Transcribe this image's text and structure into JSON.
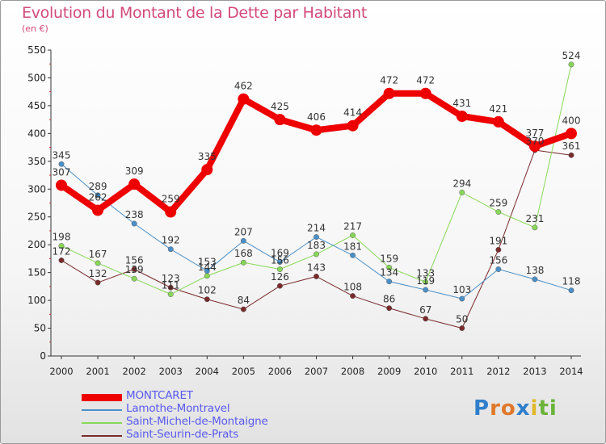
{
  "title": "Evolution du Montant de la Dette par Habitant",
  "unit_label": "(en €)",
  "logo_text": "Proxiti",
  "chart_data": {
    "type": "line",
    "x": [
      "2000",
      "2001",
      "2002",
      "2003",
      "2004",
      "2005",
      "2006",
      "2007",
      "2008",
      "2009",
      "2010",
      "2011",
      "2012",
      "2013",
      "2014"
    ],
    "ylim": [
      0,
      550
    ],
    "yticks": [
      0,
      50,
      100,
      150,
      200,
      250,
      300,
      350,
      400,
      450,
      500,
      550
    ],
    "grid": false,
    "legend_placement": "bottom-left",
    "series": [
      {
        "name": "MONTCARET",
        "color": "#ee0000",
        "width": 8,
        "values": [
          307,
          262,
          309,
          259,
          335,
          462,
          425,
          406,
          414,
          472,
          472,
          431,
          421,
          377,
          400
        ],
        "labels": [
          "307",
          "262",
          "309",
          "259",
          "335",
          "462",
          "425",
          "406",
          "414",
          "472",
          "472",
          "431",
          "421",
          "377",
          "400"
        ]
      },
      {
        "name": "Lamothe-Montravel",
        "color": "#4a90c8",
        "width": 1,
        "values": [
          345,
          289,
          238,
          192,
          153,
          207,
          169,
          214,
          181,
          134,
          119,
          103,
          156,
          138,
          118
        ],
        "labels": [
          "345",
          "289",
          "238",
          "192",
          "153",
          "207",
          "169",
          "214",
          "181",
          "134",
          "119",
          "103",
          "156",
          "138",
          "118"
        ]
      },
      {
        "name": "Saint-Michel-de-Montaigne",
        "color": "#88d858",
        "width": 1,
        "values": [
          198,
          167,
          139,
          111,
          144,
          168,
          156,
          183,
          217,
          159,
          133,
          294,
          259,
          231,
          524
        ],
        "labels": [
          "198",
          "167",
          "139",
          "111",
          "144",
          "168",
          "156",
          "183",
          "217",
          "159",
          "133",
          "294",
          "259",
          "231",
          "524"
        ]
      },
      {
        "name": "Saint-Seurin-de-Prats",
        "color": "#7a2a2a",
        "width": 1,
        "values": [
          172,
          132,
          156,
          123,
          102,
          84,
          126,
          143,
          108,
          86,
          67,
          50,
          191,
          370,
          361
        ],
        "labels": [
          "172",
          "132",
          "156",
          "123",
          "102",
          "84",
          "126",
          "143",
          "108",
          "86",
          "67",
          "50",
          "191",
          "370",
          "361"
        ]
      }
    ]
  }
}
